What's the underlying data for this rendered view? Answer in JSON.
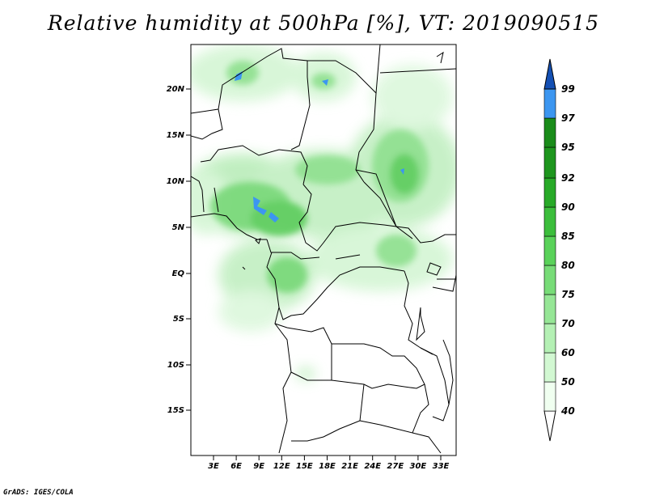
{
  "title": "Relative humidity at 500hPa [%], VT: 2019090515",
  "credit": "GrADS: IGES/COLA",
  "map": {
    "variable": "Relative humidity at 500hPa",
    "units": "%",
    "valid_time": "2019090515",
    "lon_range": [
      0,
      35
    ],
    "lat_range": [
      -20,
      25
    ],
    "lon_ticks": [
      "3E",
      "6E",
      "9E",
      "12E",
      "15E",
      "18E",
      "21E",
      "24E",
      "27E",
      "30E",
      "33E"
    ],
    "lat_ticks": [
      "20N",
      "15N",
      "10N",
      "5N",
      "EQ",
      "5S",
      "10S",
      "15S"
    ]
  },
  "colorbar": {
    "levels": [
      "40",
      "50",
      "60",
      "70",
      "75",
      "80",
      "85",
      "90",
      "92",
      "95",
      "97",
      "99"
    ],
    "colors": [
      "#f0fff0",
      "#d2f8d2",
      "#b4f0b4",
      "#96e696",
      "#78dc78",
      "#5ad25a",
      "#3cbe3c",
      "#28aa28",
      "#1e961e",
      "#1a8c1a",
      "#3c96f0",
      "#1e6ed2",
      "#1450b4"
    ]
  }
}
